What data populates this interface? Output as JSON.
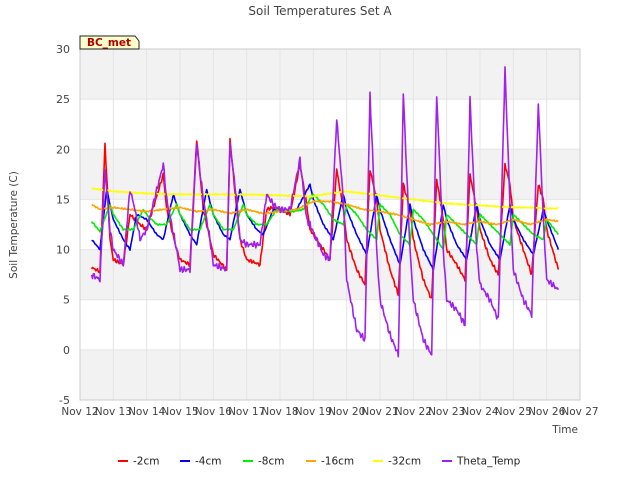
{
  "chart_data": {
    "type": "line",
    "title": "Soil Temperatures Set A",
    "xlabel": "Time",
    "ylabel": "Soil Temperature (C)",
    "badge": "BC_met",
    "ylim": [
      -5,
      30
    ],
    "yticks": [
      -5,
      0,
      5,
      10,
      15,
      20,
      25,
      30
    ],
    "xlim": [
      12,
      27
    ],
    "xticks": [
      {
        "v": 12,
        "label": "Nov 12"
      },
      {
        "v": 13,
        "label": "Nov 13"
      },
      {
        "v": 14,
        "label": "Nov 14"
      },
      {
        "v": 15,
        "label": "Nov 15"
      },
      {
        "v": 16,
        "label": "Nov 16"
      },
      {
        "v": 17,
        "label": "Nov 17"
      },
      {
        "v": 18,
        "label": "Nov 18"
      },
      {
        "v": 19,
        "label": "Nov 19"
      },
      {
        "v": 20,
        "label": "Nov 20"
      },
      {
        "v": 21,
        "label": "Nov 21"
      },
      {
        "v": 22,
        "label": "Nov 22"
      },
      {
        "v": 23,
        "label": "Nov 23"
      },
      {
        "v": 24,
        "label": "Nov 24"
      },
      {
        "v": 25,
        "label": "Nov 25"
      },
      {
        "v": 26,
        "label": "Nov 26"
      },
      {
        "v": 27,
        "label": "Nov 27"
      }
    ],
    "grid": true,
    "legend_position": "bottom",
    "series": [
      {
        "name": "-2cm",
        "color": "#ff0000",
        "x": [
          12.35,
          12.6,
          12.75,
          12.9,
          13.0,
          13.3,
          13.5,
          13.65,
          13.8,
          14.0,
          14.5,
          14.6,
          14.9,
          15.0,
          15.3,
          15.5,
          15.7,
          15.9,
          16.0,
          16.4,
          16.5,
          16.7,
          16.8,
          17.0,
          17.4,
          17.6,
          17.8,
          18.0,
          18.3,
          18.6,
          18.8,
          18.9,
          19.3,
          19.5,
          19.7,
          19.9,
          20.0,
          20.3,
          20.55,
          20.7,
          20.9,
          21.0,
          21.3,
          21.55,
          21.7,
          21.9,
          22.0,
          22.3,
          22.55,
          22.7,
          22.9,
          23.0,
          23.3,
          23.55,
          23.7,
          23.9,
          24.0,
          24.3,
          24.55,
          24.75,
          24.9,
          25.0,
          25.3,
          25.55,
          25.75,
          25.9,
          26.0,
          26.35
        ],
        "y": [
          8.2,
          7.8,
          20.5,
          11,
          9,
          8.5,
          13.5,
          13,
          12.5,
          12,
          17.5,
          14,
          10,
          9,
          8.5,
          21,
          14,
          11,
          9.5,
          8,
          21,
          14,
          11,
          9,
          8.5,
          14,
          14.2,
          14,
          13.5,
          18.5,
          14.5,
          12,
          10,
          9,
          18,
          14,
          11,
          8,
          6.5,
          18,
          15,
          12,
          8,
          5.5,
          16.5,
          14,
          11,
          7,
          5,
          17,
          13,
          10,
          8.5,
          7,
          17.5,
          14,
          12,
          9,
          7.5,
          18.5,
          16.5,
          13,
          10,
          7.5,
          16.5,
          15,
          12,
          8
        ]
      },
      {
        "name": "-4cm",
        "color": "#0000ff",
        "x": [
          12.35,
          12.6,
          12.8,
          13.0,
          13.3,
          13.5,
          13.7,
          14.0,
          14.3,
          14.5,
          14.8,
          15.0,
          15.3,
          15.5,
          15.8,
          16.0,
          16.3,
          16.5,
          16.8,
          17.0,
          17.3,
          17.5,
          17.8,
          18.0,
          18.3,
          18.5,
          18.9,
          19.0,
          19.3,
          19.6,
          19.9,
          20.0,
          20.3,
          20.6,
          20.9,
          21.0,
          21.3,
          21.6,
          21.9,
          22.0,
          22.3,
          22.6,
          22.9,
          23.0,
          23.3,
          23.6,
          23.9,
          24.0,
          24.3,
          24.6,
          24.9,
          25.0,
          25.3,
          25.6,
          25.9,
          26.0,
          26.35
        ],
        "y": [
          11,
          10,
          16,
          13,
          11,
          10,
          13.5,
          13,
          11.5,
          11,
          15.5,
          13.5,
          11.5,
          10.5,
          16,
          13.5,
          11.5,
          11,
          16,
          13.5,
          12,
          11.5,
          14,
          13.8,
          13.8,
          14,
          16.5,
          15,
          12.5,
          11,
          15.5,
          14,
          11.5,
          9.5,
          15.5,
          14,
          11,
          8.5,
          14.5,
          13,
          10,
          8,
          14.5,
          13,
          10.5,
          9,
          14.5,
          13,
          10.5,
          9,
          14.5,
          13,
          11,
          9.5,
          14,
          13,
          10
        ]
      },
      {
        "name": "-8cm",
        "color": "#00ee00",
        "x": [
          12.35,
          12.6,
          12.9,
          13.0,
          13.3,
          13.6,
          13.9,
          14.0,
          14.3,
          14.6,
          14.9,
          15.0,
          15.3,
          15.6,
          15.9,
          16.0,
          16.3,
          16.6,
          16.9,
          17.0,
          17.3,
          17.6,
          17.9,
          18.0,
          18.4,
          18.7,
          19.0,
          19.3,
          19.6,
          19.9,
          20.0,
          20.3,
          20.6,
          20.9,
          21.0,
          21.3,
          21.6,
          21.9,
          22.0,
          22.3,
          22.6,
          22.9,
          23.0,
          23.3,
          23.6,
          23.9,
          24.0,
          24.3,
          24.6,
          24.9,
          25.0,
          25.3,
          25.6,
          25.9,
          26.0,
          26.35
        ],
        "y": [
          12.8,
          11.8,
          14.5,
          13.5,
          12,
          12,
          14,
          13.5,
          12.5,
          12.5,
          14.5,
          13.5,
          12,
          12,
          14.5,
          13.5,
          12,
          12,
          14.5,
          13.5,
          12.5,
          12.5,
          14,
          13.8,
          13.8,
          14,
          15.5,
          14.5,
          13,
          12.5,
          14.5,
          13.5,
          12,
          11,
          14.5,
          13.5,
          11.5,
          10.5,
          14,
          13,
          11.5,
          10,
          13.5,
          12.5,
          11.5,
          10.5,
          13.5,
          12.5,
          11.5,
          10.5,
          13.5,
          12.5,
          11.5,
          11,
          13,
          11.5
        ]
      },
      {
        "name": "-16cm",
        "color": "#ffa500",
        "x": [
          12.35,
          12.6,
          13.0,
          13.5,
          14.0,
          14.5,
          15.0,
          15.5,
          16.0,
          16.5,
          17.0,
          17.5,
          18.0,
          18.5,
          19.0,
          19.5,
          20.0,
          20.5,
          21.0,
          21.5,
          22.0,
          22.5,
          23.0,
          23.5,
          24.0,
          24.5,
          25.0,
          25.5,
          26.0,
          26.35
        ],
        "y": [
          14.5,
          14,
          14.2,
          14,
          13.8,
          14,
          14.2,
          13.8,
          14,
          13.6,
          14,
          13.6,
          13.8,
          14,
          14.8,
          14.8,
          14.5,
          14,
          13.8,
          13.5,
          13,
          12.5,
          12.8,
          12.5,
          12.8,
          12.5,
          13,
          12.5,
          13,
          12.8
        ]
      },
      {
        "name": "-32cm",
        "color": "#ffff00",
        "x": [
          12.35,
          13.0,
          14.0,
          15.0,
          16.0,
          17.0,
          18.0,
          19.0,
          19.5,
          20.0,
          20.5,
          21.0,
          21.5,
          22.0,
          22.5,
          23.0,
          23.5,
          24.0,
          24.5,
          25.0,
          25.5,
          26.0,
          26.35
        ],
        "y": [
          16.1,
          15.8,
          15.6,
          15.5,
          15.5,
          15.5,
          15.4,
          15.3,
          15.6,
          15.8,
          15.6,
          15.4,
          15.2,
          15.0,
          14.8,
          14.6,
          14.5,
          14.4,
          14.3,
          14.2,
          14.2,
          14.1,
          14.1
        ]
      },
      {
        "name": "Theta_Temp",
        "color": "#a020f0",
        "x": [
          12.35,
          12.6,
          12.75,
          12.9,
          13.0,
          13.3,
          13.5,
          13.65,
          13.8,
          14.0,
          14.5,
          14.6,
          14.9,
          15.0,
          15.3,
          15.5,
          15.7,
          15.9,
          16.0,
          16.4,
          16.5,
          16.7,
          16.8,
          17.0,
          17.4,
          17.6,
          17.8,
          18.0,
          18.3,
          18.6,
          18.8,
          18.9,
          19.3,
          19.5,
          19.7,
          19.9,
          20.0,
          20.3,
          20.55,
          20.7,
          20.9,
          21.0,
          21.3,
          21.55,
          21.7,
          21.9,
          22.0,
          22.3,
          22.55,
          22.7,
          22.9,
          23.0,
          23.3,
          23.55,
          23.7,
          23.9,
          24.0,
          24.3,
          24.55,
          24.75,
          24.9,
          25.0,
          25.3,
          25.55,
          25.75,
          25.9,
          26.0,
          26.35
        ],
        "y": [
          7.5,
          7,
          18,
          12,
          10,
          8.5,
          16,
          14,
          11,
          12,
          18.5,
          15,
          10,
          8,
          8,
          20.5,
          15,
          11,
          8.5,
          8,
          20.5,
          15,
          11,
          10.5,
          10.5,
          15.5,
          14.5,
          14,
          14,
          19,
          13,
          12.5,
          9.5,
          9,
          23,
          15,
          7,
          2,
          1,
          25.5,
          10,
          5,
          1.5,
          -0.5,
          25.5,
          10,
          5,
          1,
          -0.5,
          25.5,
          10,
          5,
          4,
          2.5,
          25,
          10,
          6.5,
          5,
          3,
          28,
          14.5,
          8,
          5,
          3.5,
          24.5,
          13,
          7,
          6
        ]
      }
    ]
  }
}
